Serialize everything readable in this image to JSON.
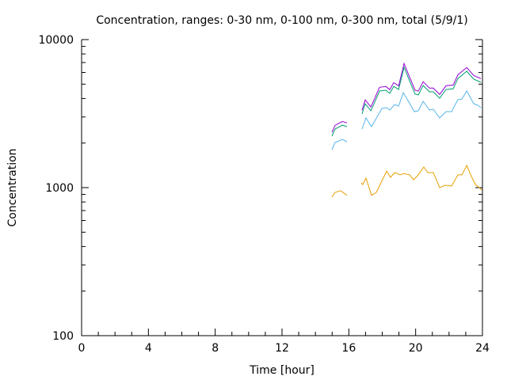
{
  "chart_data": {
    "type": "line",
    "title": "Concentration, ranges: 0-30 nm, 0-100 nm, 0-300 nm, total (5/9/1)",
    "xlabel": "Time [hour]",
    "ylabel": "Concentration",
    "xlim": [
      0,
      24
    ],
    "ylim": [
      100,
      10000
    ],
    "yscale": "log",
    "xticks": [
      0,
      4,
      8,
      12,
      16,
      20,
      24
    ],
    "xtick_labels": [
      "0",
      "4",
      "8",
      "12",
      "16",
      "20",
      "24"
    ],
    "yticks": [
      100,
      1000,
      10000
    ],
    "ytick_labels": [
      "100",
      "1000",
      "10000"
    ],
    "grid": false,
    "series": [
      {
        "name": "total",
        "color": "#9400d3",
        "segments": [
          {
            "x": [
              14.99,
              15.18,
              15.61,
              15.89
            ],
            "y": [
              2362,
              2637,
              2800,
              2737
            ]
          },
          {
            "x": [
              16.79,
              16.98,
              17.32,
              17.84,
              18.22,
              18.45,
              18.69,
              18.98,
              19.31,
              19.64,
              19.97,
              20.16,
              20.45,
              20.83,
              21.06,
              21.44,
              21.82,
              22.25,
              22.53,
              23.06,
              23.48,
              23.91
            ],
            "y": [
              3329,
              3911,
              3503,
              4759,
              4818,
              4595,
              5121,
              4873,
              6891,
              5563,
              4542,
              4484,
              5192,
              4702,
              4702,
              4259,
              4873,
              4935,
              5783,
              6476,
              5724,
              5448
            ]
          }
        ]
      },
      {
        "name": "0-300 nm",
        "color": "#009e73",
        "segments": [
          {
            "x": [
              14.99,
              15.18,
              15.61,
              15.89
            ],
            "y": [
              2228,
              2488,
              2642,
              2582
            ]
          },
          {
            "x": [
              16.79,
              16.98,
              17.32,
              17.84,
              18.22,
              18.45,
              18.69,
              18.98,
              19.31,
              19.64,
              19.97,
              20.16,
              20.45,
              20.83,
              21.06,
              21.44,
              21.82,
              22.25,
              22.53,
              23.06,
              23.48,
              23.91
            ],
            "y": [
              3141,
              3690,
              3305,
              4490,
              4545,
              4335,
              4831,
              4597,
              6501,
              5248,
              4285,
              4230,
              4898,
              4436,
              4436,
              4018,
              4597,
              4656,
              5456,
              6109,
              5400,
              5140
            ]
          }
        ]
      },
      {
        "name": "0-100 nm",
        "color": "#56b4e9",
        "segments": [
          {
            "x": [
              14.99,
              15.18,
              15.61,
              15.89
            ],
            "y": [
              1806,
              2017,
              2118,
              2042
            ]
          },
          {
            "x": [
              16.79,
              17.03,
              17.36,
              17.98,
              18.26,
              18.45,
              18.74,
              18.98,
              19.26,
              19.54,
              19.92,
              20.16,
              20.45,
              20.83,
              21.06,
              21.44,
              21.82,
              22.15,
              22.53,
              22.77,
              23.06,
              23.48,
              23.72,
              23.91
            ],
            "y": [
              2488,
              2956,
              2582,
              3427,
              3467,
              3343,
              3641,
              3556,
              4385,
              3874,
              3262,
              3305,
              3828,
              3343,
              3383,
              2956,
              3262,
              3262,
              3926,
              3972,
              4490,
              3690,
              3597,
              3467
            ]
          }
        ]
      },
      {
        "name": "0-30 nm",
        "color": "#e69f00",
        "segments": [
          {
            "x": [
              14.99,
              15.18,
              15.51,
              15.89
            ],
            "y": [
              863,
              929,
              953,
              887
            ]
          },
          {
            "x": [
              16.74,
              16.84,
              17.03,
              17.36,
              17.65,
              18.26,
              18.5,
              18.74,
              19.07,
              19.31,
              19.64,
              19.88,
              20.16,
              20.49,
              20.73,
              21.06,
              21.44,
              21.77,
              22.15,
              22.53,
              22.77,
              23.06,
              23.34,
              23.58,
              23.81,
              23.96
            ],
            "y": [
              1077,
              1050,
              1159,
              887,
              929,
              1294,
              1174,
              1263,
              1219,
              1247,
              1219,
              1130,
              1219,
              1377,
              1263,
              1263,
              1000,
              1038,
              1025,
              1219,
              1219,
              1412,
              1188,
              1050,
              1000,
              964
            ]
          }
        ]
      }
    ]
  }
}
